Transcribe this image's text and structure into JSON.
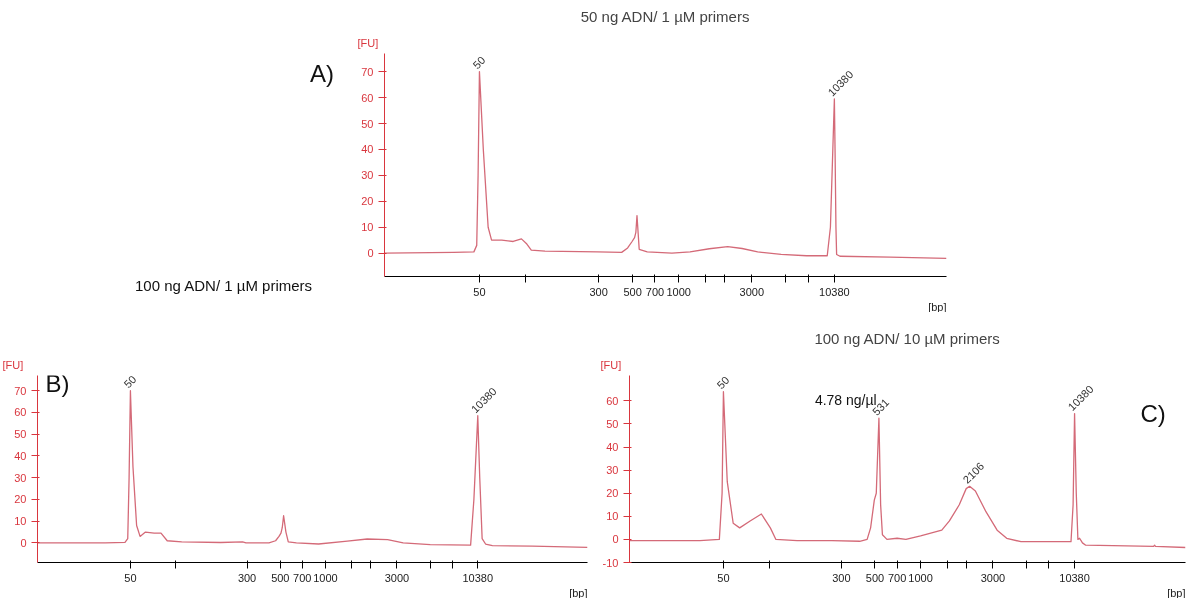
{
  "chart_data": [
    {
      "type": "line",
      "title": "50 ng ADN/ 1 µM primers",
      "xlabel": "[bp]",
      "ylabel": "[FU]",
      "annotations": [
        "A)",
        {
          "text": "50",
          "x": 50,
          "y": 70
        },
        {
          "text": "10380",
          "x": 10380,
          "y": 59.5
        }
      ],
      "x": [
        12,
        34,
        46,
        48,
        49,
        50,
        53,
        57,
        60,
        70,
        83,
        94,
        102,
        109,
        134,
        295,
        424,
        464,
        496,
        515,
        525,
        534,
        543,
        552,
        623,
        903,
        1186,
        1584,
        2088,
        2594,
        3276,
        4662,
        6830,
        9324,
        9780,
        10140,
        10380,
        10485,
        10627,
        10735,
        11290,
        24000,
        56000
      ],
      "series": [
        {
          "color": "#d46a78",
          "values": [
            0,
            0.3,
            0.5,
            3,
            30,
            70,
            40,
            10,
            5,
            5,
            4.5,
            5.5,
            3.5,
            1.2,
            0.8,
            0.5,
            0.3,
            2,
            4.5,
            6,
            8,
            14.5,
            8,
            1.5,
            0.5,
            0,
            0.5,
            1.7,
            2.5,
            1.8,
            0.5,
            -0.5,
            -1,
            -1,
            10,
            40,
            59.5,
            40,
            10,
            -0.5,
            -1.2,
            -1.5,
            -2
          ]
        }
      ],
      "xlim": [
        12,
        56000
      ],
      "ylim": [
        -9,
        77
      ],
      "xticks": [
        50,
        {
          "value": 100,
          "label": null
        },
        300,
        500,
        700,
        1000,
        {
          "value": 1500,
          "label": null
        },
        {
          "value": 2000,
          "label": null
        },
        3000,
        {
          "value": 5000,
          "label": null
        },
        {
          "value": 7000,
          "label": null
        },
        10380
      ],
      "yticks": [
        0,
        10,
        20,
        30,
        40,
        50,
        60,
        70
      ],
      "log": "x"
    },
    {
      "type": "line",
      "title": "100 ng ADN/ 1 µM primers",
      "xlabel": "[bp]",
      "ylabel": "[FU]",
      "annotations": [
        "B)",
        {
          "text": "50",
          "x": 50,
          "y": 70
        },
        {
          "text": "10380",
          "x": 10380,
          "y": 58.5
        }
      ],
      "x": [
        12,
        34,
        46,
        48,
        49,
        50,
        52,
        55,
        58,
        63,
        72,
        80,
        88,
        110,
        200,
        280,
        295,
        420,
        465,
        490,
        505,
        515,
        526,
        545,
        565,
        640,
        900,
        1400,
        1900,
        2600,
        3300,
        5000,
        9300,
        9780,
        10380,
        10700,
        11100,
        11700,
        13000,
        24000,
        56000
      ],
      "series": [
        {
          "color": "#d46a78",
          "values": [
            0,
            0,
            0.3,
            2,
            30,
            70,
            35,
            8,
            3,
            5,
            4.5,
            4.5,
            1,
            0.5,
            0.2,
            0.5,
            0,
            0,
            1,
            3,
            4.5,
            7,
            12.5,
            5,
            0.5,
            0,
            -0.5,
            0.8,
            1.8,
            1.5,
            0,
            -0.8,
            -1,
            20,
            58.5,
            30,
            2,
            -0.5,
            -1.2,
            -1.5,
            -2
          ]
        }
      ],
      "xlim": [
        12,
        56000
      ],
      "ylim": [
        -9,
        77
      ],
      "xticks": [
        50,
        {
          "value": 100,
          "label": null
        },
        300,
        500,
        700,
        1000,
        {
          "value": 1500,
          "label": null
        },
        {
          "value": 2000,
          "label": null
        },
        3000,
        {
          "value": 5000,
          "label": null
        },
        {
          "value": 7000,
          "label": null
        },
        10380
      ],
      "yticks": [
        0,
        10,
        20,
        30,
        40,
        50,
        60,
        70
      ],
      "log": "x"
    },
    {
      "type": "line",
      "title": "100 ng ADN/ 10 µM primers",
      "xlabel": "[bp]",
      "ylabel": "[FU]",
      "annotations": [
        "C)",
        "4.78 ng/µl",
        {
          "text": "50",
          "x": 50,
          "y": 64
        },
        {
          "text": "531",
          "x": 531,
          "y": 52.5
        },
        {
          "text": "2106",
          "x": 2106,
          "y": 23
        },
        {
          "text": "10380",
          "x": 10380,
          "y": 54.5
        }
      ],
      "x": [
        12,
        35,
        47,
        49,
        50,
        53,
        58,
        64,
        75,
        89,
        102,
        111,
        153,
        259,
        397,
        444,
        468,
        495,
        510,
        531,
        545,
        560,
        600,
        700,
        800,
        1000,
        1380,
        1550,
        1800,
        2000,
        2106,
        2300,
        2700,
        3200,
        3700,
        4600,
        9830,
        10150,
        10380,
        10650,
        10920,
        11200,
        11700,
        12300,
        34500,
        35000,
        35500,
        56000
      ],
      "series": [
        {
          "color": "#d46a78",
          "values": [
            -0.5,
            -0.5,
            0,
            20,
            64,
            25,
            7,
            5,
            8,
            11,
            5,
            0,
            -0.5,
            -0.5,
            -0.8,
            0,
            5,
            17,
            20,
            52.5,
            15,
            2,
            0,
            0.5,
            0,
            1.5,
            4,
            8,
            15,
            22,
            23,
            21,
            12,
            4,
            0.5,
            -1,
            -1,
            15,
            54.5,
            20,
            0,
            0.5,
            -1.5,
            -2.5,
            -3,
            -2.5,
            -3,
            -3.5
          ]
        }
      ],
      "xlim": [
        12,
        56000
      ],
      "ylim": [
        -10,
        71
      ],
      "xticks": [
        50,
        {
          "value": 100,
          "label": null
        },
        300,
        500,
        700,
        1000,
        {
          "value": 1500,
          "label": null
        },
        {
          "value": 2000,
          "label": null
        },
        3000,
        {
          "value": 5000,
          "label": null
        },
        {
          "value": 7000,
          "label": null
        },
        10380
      ],
      "yticks": [
        -10,
        0,
        10,
        20,
        30,
        40,
        50,
        60
      ],
      "log": "x"
    }
  ]
}
